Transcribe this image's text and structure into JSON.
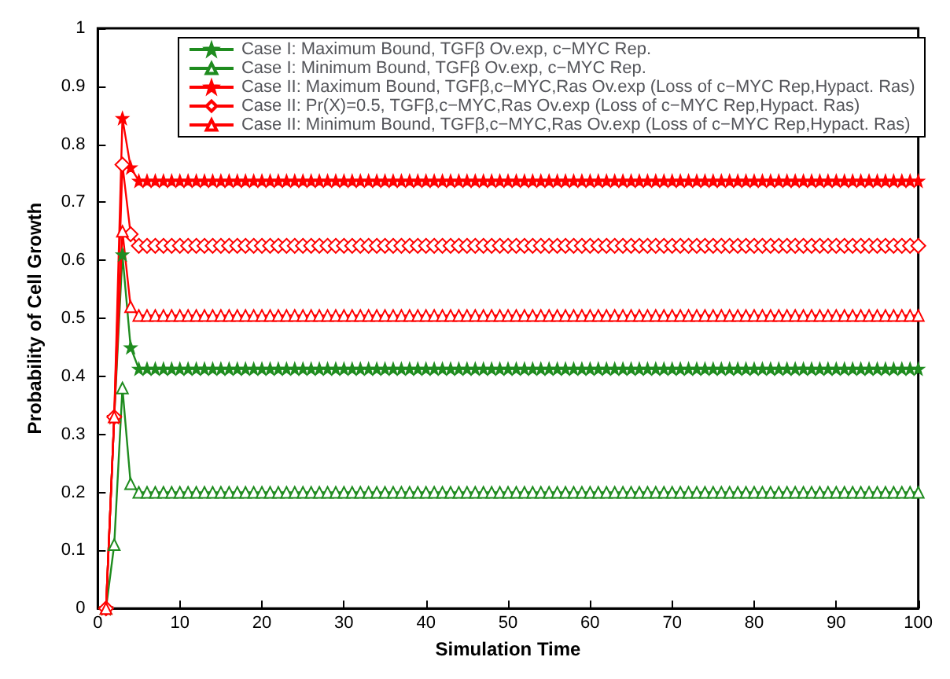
{
  "chart_data": {
    "type": "line",
    "xlabel": "Simulation Time",
    "ylabel": "Probability of Cell Growth",
    "xlim": [
      0,
      100
    ],
    "xticks": [
      0,
      10,
      20,
      30,
      40,
      50,
      60,
      70,
      80,
      90,
      100
    ],
    "ylim": [
      0,
      1
    ],
    "yticks": [
      0,
      0.1,
      0.2,
      0.3,
      0.4,
      0.5,
      0.6,
      0.7,
      0.8,
      0.9,
      1
    ],
    "grid": false,
    "legend": "top right",
    "line_style": "solid",
    "x": [
      1,
      2,
      3,
      4,
      5,
      6,
      7,
      8,
      9,
      10,
      11,
      12,
      13,
      14,
      15,
      16,
      17,
      18,
      19,
      20,
      21,
      22,
      23,
      24,
      25,
      26,
      27,
      28,
      29,
      30,
      31,
      32,
      33,
      34,
      35,
      36,
      37,
      38,
      39,
      40,
      41,
      42,
      43,
      44,
      45,
      46,
      47,
      48,
      49,
      50,
      51,
      52,
      53,
      54,
      55,
      56,
      57,
      58,
      59,
      60,
      61,
      62,
      63,
      64,
      65,
      66,
      67,
      68,
      69,
      70,
      71,
      72,
      73,
      74,
      75,
      76,
      77,
      78,
      79,
      80,
      81,
      82,
      83,
      84,
      85,
      86,
      87,
      88,
      89,
      90,
      91,
      92,
      93,
      94,
      95,
      96,
      97,
      98,
      99,
      100
    ],
    "series": [
      {
        "name": "Case I: Maximum Bound, TGFβ Ov.exp, c−MYC Rep.",
        "color": "#1f8c1f",
        "marker": "star",
        "values": [
          0,
          0.33,
          0.61,
          0.45,
          0.413,
          0.413,
          0.413,
          0.413,
          0.413,
          0.413,
          0.413,
          0.413,
          0.413,
          0.413,
          0.413,
          0.413,
          0.413,
          0.413,
          0.413,
          0.413,
          0.413,
          0.413,
          0.413,
          0.413,
          0.413,
          0.413,
          0.413,
          0.413,
          0.413,
          0.413,
          0.413,
          0.413,
          0.413,
          0.413,
          0.413,
          0.413,
          0.413,
          0.413,
          0.413,
          0.413,
          0.413,
          0.413,
          0.413,
          0.413,
          0.413,
          0.413,
          0.413,
          0.413,
          0.413,
          0.413,
          0.413,
          0.413,
          0.413,
          0.413,
          0.413,
          0.413,
          0.413,
          0.413,
          0.413,
          0.413,
          0.413,
          0.413,
          0.413,
          0.413,
          0.413,
          0.413,
          0.413,
          0.413,
          0.413,
          0.413,
          0.413,
          0.413,
          0.413,
          0.413,
          0.413,
          0.413,
          0.413,
          0.413,
          0.413,
          0.413,
          0.413,
          0.413,
          0.413,
          0.413,
          0.413,
          0.413,
          0.413,
          0.413,
          0.413,
          0.413,
          0.413,
          0.413,
          0.413,
          0.413,
          0.413,
          0.413,
          0.413,
          0.413,
          0.413,
          0.413
        ]
      },
      {
        "name": "Case I: Minimum Bound, TGFβ Ov.exp, c−MYC Rep.",
        "color": "#1f8c1f",
        "marker": "triangle",
        "values": [
          0,
          0.11,
          0.38,
          0.215,
          0.2,
          0.2,
          0.2,
          0.2,
          0.2,
          0.2,
          0.2,
          0.2,
          0.2,
          0.2,
          0.2,
          0.2,
          0.2,
          0.2,
          0.2,
          0.2,
          0.2,
          0.2,
          0.2,
          0.2,
          0.2,
          0.2,
          0.2,
          0.2,
          0.2,
          0.2,
          0.2,
          0.2,
          0.2,
          0.2,
          0.2,
          0.2,
          0.2,
          0.2,
          0.2,
          0.2,
          0.2,
          0.2,
          0.2,
          0.2,
          0.2,
          0.2,
          0.2,
          0.2,
          0.2,
          0.2,
          0.2,
          0.2,
          0.2,
          0.2,
          0.2,
          0.2,
          0.2,
          0.2,
          0.2,
          0.2,
          0.2,
          0.2,
          0.2,
          0.2,
          0.2,
          0.2,
          0.2,
          0.2,
          0.2,
          0.2,
          0.2,
          0.2,
          0.2,
          0.2,
          0.2,
          0.2,
          0.2,
          0.2,
          0.2,
          0.2,
          0.2,
          0.2,
          0.2,
          0.2,
          0.2,
          0.2,
          0.2,
          0.2,
          0.2,
          0.2,
          0.2,
          0.2,
          0.2,
          0.2,
          0.2,
          0.2,
          0.2,
          0.2,
          0.2,
          0.2
        ]
      },
      {
        "name": "Case II: Maximum Bound, TGFβ,c−MYC,Ras Ov.exp (Loss of c−MYC Rep,Hypact. Ras)",
        "color": "#ff0000",
        "marker": "star",
        "values": [
          0,
          0.33,
          0.845,
          0.76,
          0.737,
          0.737,
          0.737,
          0.737,
          0.737,
          0.737,
          0.737,
          0.737,
          0.737,
          0.737,
          0.737,
          0.737,
          0.737,
          0.737,
          0.737,
          0.737,
          0.737,
          0.737,
          0.737,
          0.737,
          0.737,
          0.737,
          0.737,
          0.737,
          0.737,
          0.737,
          0.737,
          0.737,
          0.737,
          0.737,
          0.737,
          0.737,
          0.737,
          0.737,
          0.737,
          0.737,
          0.737,
          0.737,
          0.737,
          0.737,
          0.737,
          0.737,
          0.737,
          0.737,
          0.737,
          0.737,
          0.737,
          0.737,
          0.737,
          0.737,
          0.737,
          0.737,
          0.737,
          0.737,
          0.737,
          0.737,
          0.737,
          0.737,
          0.737,
          0.737,
          0.737,
          0.737,
          0.737,
          0.737,
          0.737,
          0.737,
          0.737,
          0.737,
          0.737,
          0.737,
          0.737,
          0.737,
          0.737,
          0.737,
          0.737,
          0.737,
          0.737,
          0.737,
          0.737,
          0.737,
          0.737,
          0.737,
          0.737,
          0.737,
          0.737,
          0.737,
          0.737,
          0.737,
          0.737,
          0.737,
          0.737,
          0.737,
          0.737,
          0.737,
          0.737,
          0.737
        ]
      },
      {
        "name": "Case II: Pr(X)=0.5, TGFβ,c−MYC,Ras Ov.exp (Loss of c−MYC Rep,Hypact. Ras)",
        "color": "#ff0000",
        "marker": "diamond",
        "values": [
          0,
          0.33,
          0.765,
          0.645,
          0.625,
          0.625,
          0.625,
          0.625,
          0.625,
          0.625,
          0.625,
          0.625,
          0.625,
          0.625,
          0.625,
          0.625,
          0.625,
          0.625,
          0.625,
          0.625,
          0.625,
          0.625,
          0.625,
          0.625,
          0.625,
          0.625,
          0.625,
          0.625,
          0.625,
          0.625,
          0.625,
          0.625,
          0.625,
          0.625,
          0.625,
          0.625,
          0.625,
          0.625,
          0.625,
          0.625,
          0.625,
          0.625,
          0.625,
          0.625,
          0.625,
          0.625,
          0.625,
          0.625,
          0.625,
          0.625,
          0.625,
          0.625,
          0.625,
          0.625,
          0.625,
          0.625,
          0.625,
          0.625,
          0.625,
          0.625,
          0.625,
          0.625,
          0.625,
          0.625,
          0.625,
          0.625,
          0.625,
          0.625,
          0.625,
          0.625,
          0.625,
          0.625,
          0.625,
          0.625,
          0.625,
          0.625,
          0.625,
          0.625,
          0.625,
          0.625,
          0.625,
          0.625,
          0.625,
          0.625,
          0.625,
          0.625,
          0.625,
          0.625,
          0.625,
          0.625,
          0.625,
          0.625,
          0.625,
          0.625,
          0.625,
          0.625,
          0.625,
          0.625,
          0.625,
          0.625
        ]
      },
      {
        "name": "Case II: Minimum Bound, TGFβ,c−MYC,Ras Ov.exp (Loss of c−MYC Rep,Hypact. Ras)",
        "color": "#ff0000",
        "marker": "triangle",
        "values": [
          0,
          0.33,
          0.65,
          0.52,
          0.505,
          0.505,
          0.505,
          0.505,
          0.505,
          0.505,
          0.505,
          0.505,
          0.505,
          0.505,
          0.505,
          0.505,
          0.505,
          0.505,
          0.505,
          0.505,
          0.505,
          0.505,
          0.505,
          0.505,
          0.505,
          0.505,
          0.505,
          0.505,
          0.505,
          0.505,
          0.505,
          0.505,
          0.505,
          0.505,
          0.505,
          0.505,
          0.505,
          0.505,
          0.505,
          0.505,
          0.505,
          0.505,
          0.505,
          0.505,
          0.505,
          0.505,
          0.505,
          0.505,
          0.505,
          0.505,
          0.505,
          0.505,
          0.505,
          0.505,
          0.505,
          0.505,
          0.505,
          0.505,
          0.505,
          0.505,
          0.505,
          0.505,
          0.505,
          0.505,
          0.505,
          0.505,
          0.505,
          0.505,
          0.505,
          0.505,
          0.505,
          0.505,
          0.505,
          0.505,
          0.505,
          0.505,
          0.505,
          0.505,
          0.505,
          0.505,
          0.505,
          0.505,
          0.505,
          0.505,
          0.505,
          0.505,
          0.505,
          0.505,
          0.505,
          0.505,
          0.505,
          0.505,
          0.505,
          0.505,
          0.505,
          0.505,
          0.505,
          0.505,
          0.505,
          0.505
        ]
      }
    ]
  }
}
